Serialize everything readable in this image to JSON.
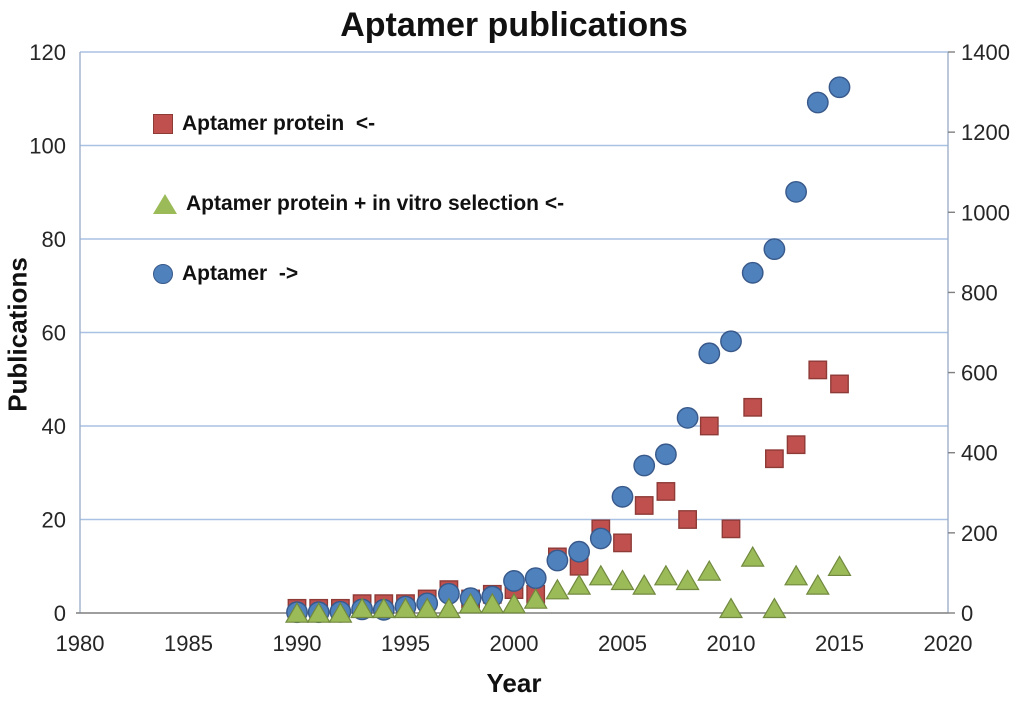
{
  "chart": {
    "title": "Aptamer publications",
    "x_axis_label": "Year",
    "left_axis_label": "Publications"
  },
  "chart_data": {
    "type": "scatter",
    "title": "Aptamer publications",
    "xlabel": "Year",
    "ylabel_left": "Publications",
    "x_range": [
      1980,
      2020
    ],
    "x_ticks": [
      1980,
      1985,
      1990,
      1995,
      2000,
      2005,
      2010,
      2015,
      2020
    ],
    "left_axis": {
      "min": 0,
      "max": 120,
      "ticks": [
        0,
        20,
        40,
        60,
        80,
        100,
        120
      ]
    },
    "right_axis": {
      "min": 0,
      "max": 1400,
      "ticks": [
        0,
        200,
        400,
        600,
        800,
        1000,
        1200,
        1400
      ]
    },
    "grid": "horizontal",
    "legend_position": "inside-top-left",
    "years": [
      1990,
      1991,
      1992,
      1993,
      1994,
      1995,
      1996,
      1997,
      1998,
      1999,
      2000,
      2001,
      2002,
      2003,
      2004,
      2005,
      2006,
      2007,
      2008,
      2009,
      2010,
      2011,
      2012,
      2013,
      2014,
      2015
    ],
    "draw_order": [
      0,
      2,
      1
    ],
    "series": [
      {
        "name": "Aptamer protein",
        "legend_label": "Aptamer protein  <-",
        "axis": "left",
        "marker": "square",
        "color": "#C0504D",
        "stroke": "#8E3B38",
        "values": [
          1,
          1,
          1,
          2,
          2,
          2,
          3,
          5,
          3,
          4,
          5,
          4,
          12,
          10,
          18,
          15,
          23,
          26,
          20,
          40,
          18,
          44,
          33,
          36,
          52,
          49
        ]
      },
      {
        "name": "Aptamer protein + in vitro selection",
        "legend_label": "Aptamer protein + in vitro selection <-",
        "axis": "left",
        "marker": "triangle",
        "color": "#9BBB59",
        "stroke": "#71893F",
        "values": [
          0,
          0,
          0,
          1,
          1,
          1,
          1,
          1,
          2,
          2,
          2,
          3,
          5,
          6,
          8,
          7,
          6,
          8,
          7,
          9,
          1,
          12,
          1,
          8,
          6,
          10
        ]
      },
      {
        "name": "Aptamer",
        "legend_label": "Aptamer  ->",
        "axis": "right",
        "marker": "circle",
        "color": "#4F81BD",
        "stroke": "#38598A",
        "values": [
          2,
          2,
          3,
          9,
          8,
          16,
          24,
          48,
          37,
          41,
          80,
          87,
          131,
          153,
          186,
          290,
          368,
          396,
          487,
          648,
          678,
          849,
          908,
          1051,
          1274,
          1312
        ]
      }
    ],
    "style": {
      "gridline_color": "#A9C1E3",
      "plot_border_color": "#9FB0C9",
      "bottom_axis_color": "#7F7F7F",
      "tick_text_color": "#262626"
    }
  }
}
